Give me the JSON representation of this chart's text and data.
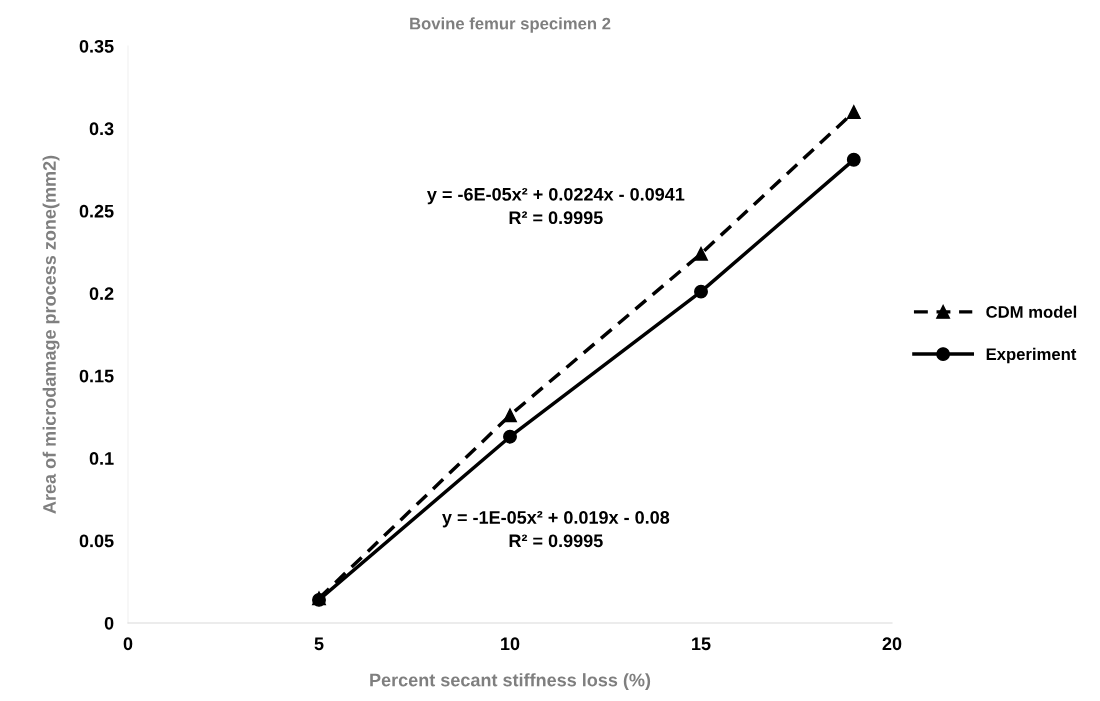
{
  "chart_data": {
    "type": "line",
    "title": "Bovine femur specimen 2",
    "xlabel": "Percent secant stiffness loss (%)",
    "ylabel": "Area of microdamage process zone(mm2)",
    "x": [
      5,
      10,
      15,
      19
    ],
    "series": [
      {
        "name": "CDM model",
        "color": "#000000",
        "values": [
          0.015,
          0.126,
          0.224,
          0.31
        ],
        "marker": "triangle",
        "line_style": "dashed"
      },
      {
        "name": "Experiment",
        "color": "#000000",
        "values": [
          0.014,
          0.113,
          0.201,
          0.281
        ],
        "marker": "circle",
        "line_style": "solid"
      }
    ],
    "xlim": [
      0,
      20
    ],
    "xticks": [
      0,
      5,
      10,
      15,
      20
    ],
    "ylim": [
      0,
      0.35
    ],
    "yticks": [
      0,
      0.05,
      0.1,
      0.15,
      0.2,
      0.25,
      0.3,
      0.35
    ],
    "grid": false,
    "legend": "right",
    "annotations": [
      "y = -6E-05x² + 0.0224x - 0.0941\nR² = 0.9995",
      "y = -1E-05x² + 0.019x - 0.08\nR² = 0.9995"
    ]
  }
}
